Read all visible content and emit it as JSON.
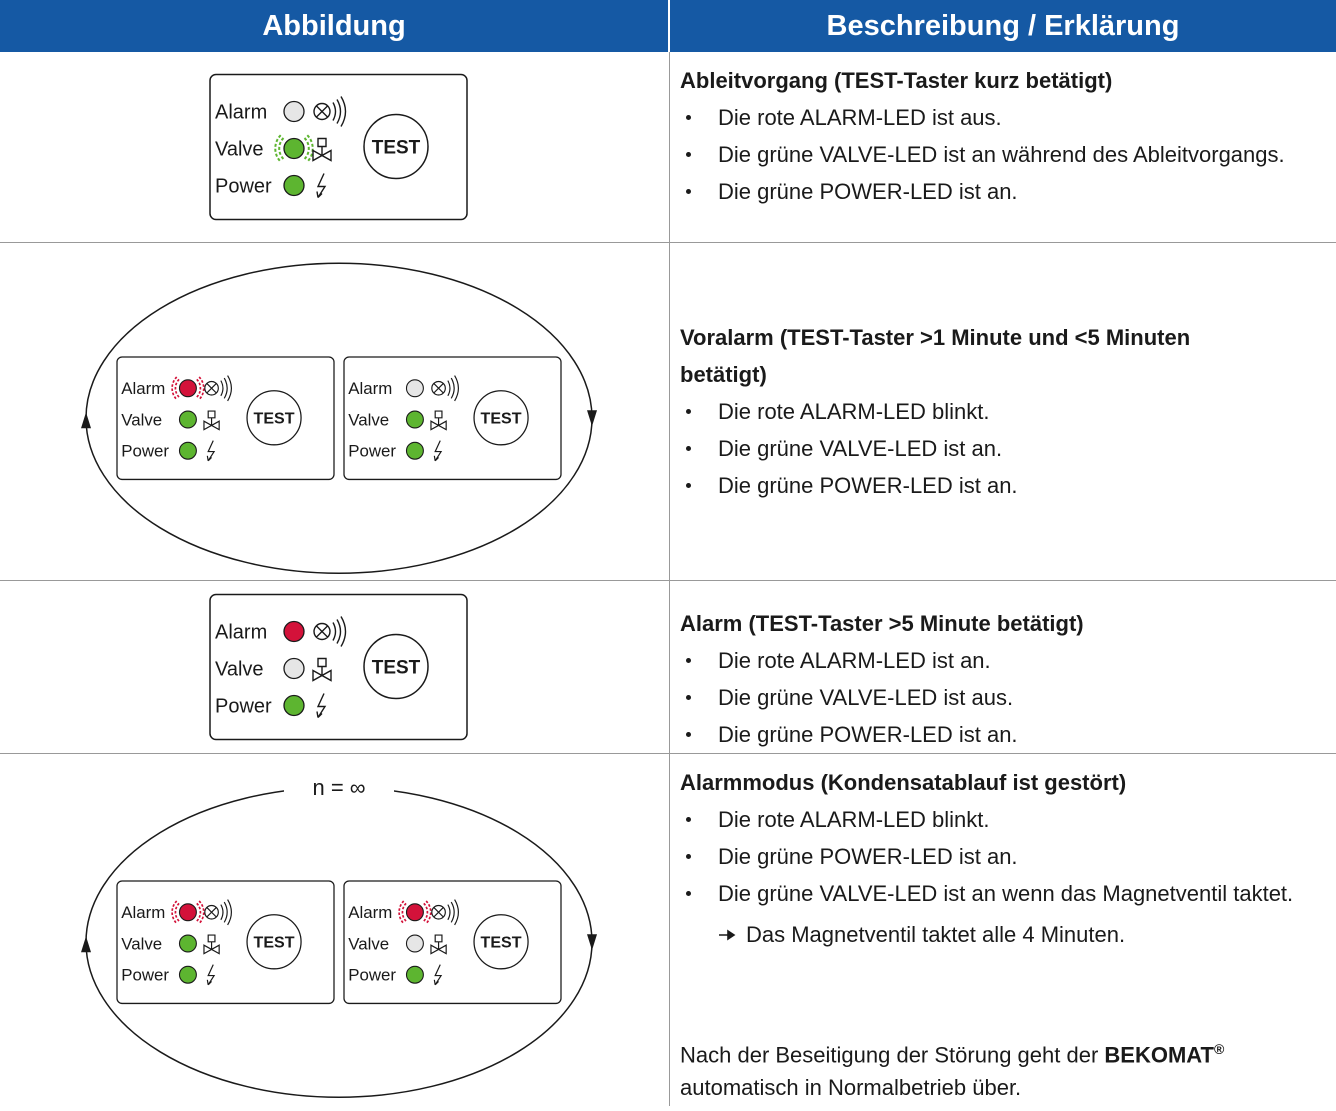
{
  "table": {
    "headers": [
      "Abbildung",
      "Beschreibung / Erklärung"
    ],
    "rows": [
      {
        "figure": {
          "panels": [
            {
              "labels": [
                "Alarm",
                "Valve",
                "Power"
              ],
              "button": "TEST",
              "leds": [
                "#e6e6e6",
                "#5db530",
                "#5db530"
              ],
              "blink": [
                false,
                true,
                false
              ]
            }
          ]
        },
        "title": "Ableitvorgang (TEST-Taster kurz betätigt)",
        "items": [
          "Die rote ALARM-LED ist aus.",
          "Die grüne VALVE-LED ist an während des Ableitvorgangs.",
          "Die grüne POWER-LED ist an."
        ]
      },
      {
        "figure": {
          "cycle": true,
          "panels": [
            {
              "labels": [
                "Alarm",
                "Valve",
                "Power"
              ],
              "button": "TEST",
              "leds": [
                "#d3123a",
                "#5db530",
                "#5db530"
              ],
              "blink": [
                true,
                false,
                false
              ]
            },
            {
              "labels": [
                "Alarm",
                "Valve",
                "Power"
              ],
              "button": "TEST",
              "leds": [
                "#e6e6e6",
                "#5db530",
                "#5db530"
              ],
              "blink": [
                false,
                false,
                false
              ]
            }
          ]
        },
        "title": "Voralarm (TEST-Taster >1 Minute und <5 Minuten betätigt)",
        "items": [
          "Die rote ALARM-LED blinkt.",
          "Die grüne VALVE-LED ist an.",
          "Die grüne POWER-LED ist an."
        ]
      },
      {
        "figure": {
          "panels": [
            {
              "labels": [
                "Alarm",
                "Valve",
                "Power"
              ],
              "button": "TEST",
              "leds": [
                "#d3123a",
                "#e6e6e6",
                "#5db530"
              ],
              "blink": [
                false,
                false,
                false
              ]
            }
          ]
        },
        "title": "Alarm (TEST-Taster >5 Minute betätigt)",
        "items": [
          "Die rote ALARM-LED ist an.",
          "Die grüne VALVE-LED ist aus.",
          "Die grüne POWER-LED ist an."
        ]
      },
      {
        "figure": {
          "cycle": true,
          "cycle_label": "n = ∞",
          "panels": [
            {
              "labels": [
                "Alarm",
                "Valve",
                "Power"
              ],
              "button": "TEST",
              "leds": [
                "#d3123a",
                "#5db530",
                "#5db530"
              ],
              "blink": [
                true,
                false,
                false
              ]
            },
            {
              "labels": [
                "Alarm",
                "Valve",
                "Power"
              ],
              "button": "TEST",
              "leds": [
                "#d3123a",
                "#e6e6e6",
                "#5db530"
              ],
              "blink": [
                true,
                false,
                false
              ]
            }
          ]
        },
        "title": "Alarmmodus (Kondensatablauf ist gestört)",
        "items": [
          "Die rote ALARM-LED blinkt.",
          "Die grüne POWER-LED ist an.",
          "Die grüne VALVE-LED ist an wenn das Magnetventil taktet."
        ],
        "subitem": "Das Magnetventil taktet alle 4 Minuten.",
        "note": [
          "Nach der Beseitigung der Störung geht der ",
          "BEKOMAT",
          "®",
          " automatisch in Normalbetrieb über."
        ]
      }
    ]
  }
}
